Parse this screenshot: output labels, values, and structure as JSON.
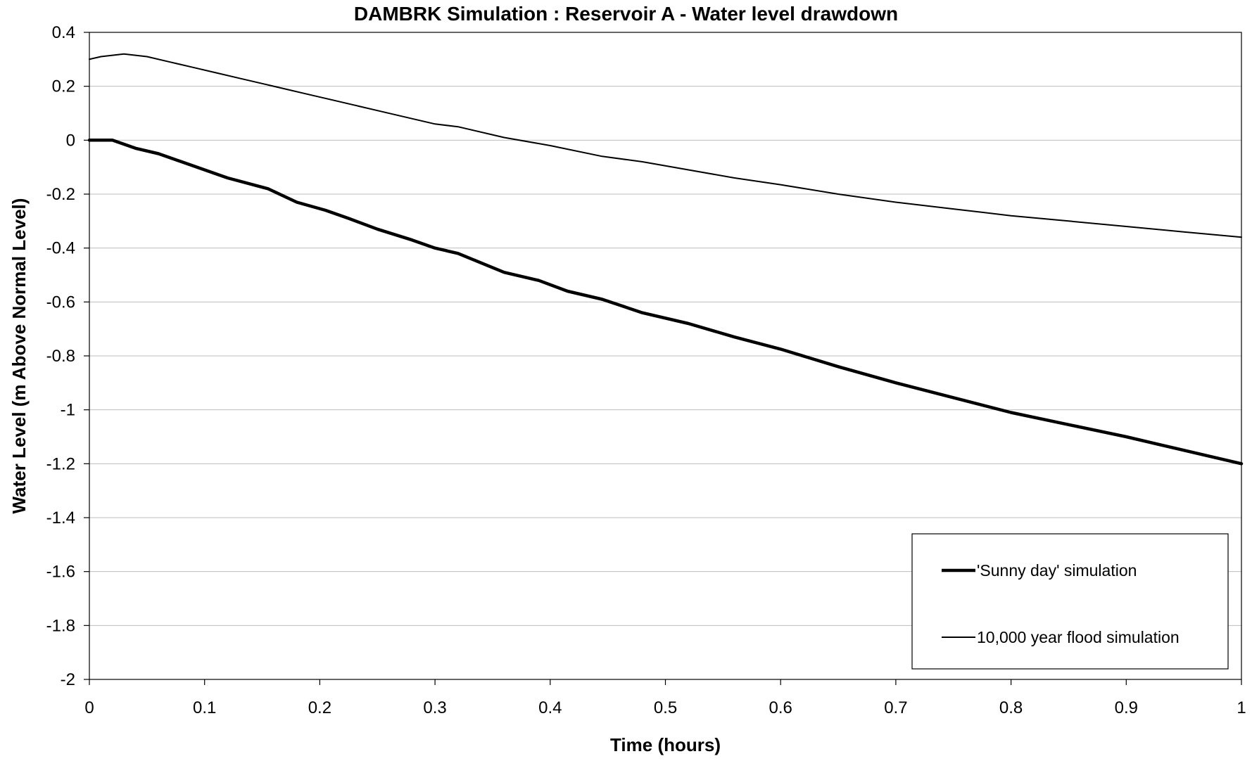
{
  "chart_data": {
    "type": "line",
    "title": "DAMBRK Simulation : Reservoir A - Water level drawdown",
    "xlabel": "Time (hours)",
    "ylabel": "Water Level (m Above Normal Level)",
    "xlim": [
      0,
      1
    ],
    "ylim": [
      -2,
      0.4
    ],
    "x_ticks": [
      0,
      0.1,
      0.2,
      0.3,
      0.4,
      0.5,
      0.6,
      0.7,
      0.8,
      0.9,
      1
    ],
    "x_tick_labels": [
      "0",
      "0.1",
      "0.2",
      "0.3",
      "0.4",
      "0.5",
      "0.6",
      "0.7",
      "0.8",
      "0.9",
      "1"
    ],
    "y_ticks": [
      0.4,
      0.2,
      0,
      -0.2,
      -0.4,
      -0.6,
      -0.8,
      -1,
      -1.2,
      -1.4,
      -1.6,
      -1.8,
      -2
    ],
    "y_tick_labels": [
      "0.4",
      "0.2",
      "0",
      "-0.2",
      "-0.4",
      "-0.6",
      "-0.8",
      "-1",
      "-1.2",
      "-1.4",
      "-1.6",
      "-1.8",
      "-2"
    ],
    "grid": "horizontal",
    "legend_position": "bottom-right",
    "series": [
      {
        "name": "'Sunny day' simulation",
        "color": "#000000",
        "style": "thick",
        "x": [
          0,
          0.02,
          0.04,
          0.06,
          0.08,
          0.1,
          0.12,
          0.155,
          0.18,
          0.205,
          0.225,
          0.25,
          0.28,
          0.3,
          0.32,
          0.36,
          0.39,
          0.415,
          0.445,
          0.48,
          0.52,
          0.56,
          0.6,
          0.65,
          0.7,
          0.75,
          0.8,
          0.85,
          0.9,
          0.95,
          1.0
        ],
        "y": [
          0,
          0,
          -0.03,
          -0.05,
          -0.08,
          -0.11,
          -0.14,
          -0.18,
          -0.23,
          -0.26,
          -0.29,
          -0.33,
          -0.37,
          -0.4,
          -0.42,
          -0.49,
          -0.52,
          -0.56,
          -0.59,
          -0.64,
          -0.68,
          -0.73,
          -0.775,
          -0.84,
          -0.9,
          -0.955,
          -1.01,
          -1.055,
          -1.1,
          -1.15,
          -1.2
        ]
      },
      {
        "name": "10,000 year flood simulation",
        "color": "#000000",
        "style": "thin",
        "x": [
          0,
          0.01,
          0.03,
          0.05,
          0.07,
          0.09,
          0.11,
          0.13,
          0.15,
          0.17,
          0.19,
          0.21,
          0.25,
          0.28,
          0.3,
          0.32,
          0.36,
          0.4,
          0.445,
          0.48,
          0.52,
          0.56,
          0.6,
          0.65,
          0.7,
          0.75,
          0.8,
          0.85,
          0.9,
          0.95,
          1.0
        ],
        "y": [
          0.3,
          0.31,
          0.32,
          0.31,
          0.29,
          0.27,
          0.25,
          0.23,
          0.21,
          0.19,
          0.17,
          0.15,
          0.11,
          0.08,
          0.06,
          0.05,
          0.01,
          -0.02,
          -0.06,
          -0.08,
          -0.11,
          -0.14,
          -0.165,
          -0.2,
          -0.23,
          -0.255,
          -0.28,
          -0.3,
          -0.32,
          -0.34,
          -0.36
        ]
      }
    ]
  }
}
